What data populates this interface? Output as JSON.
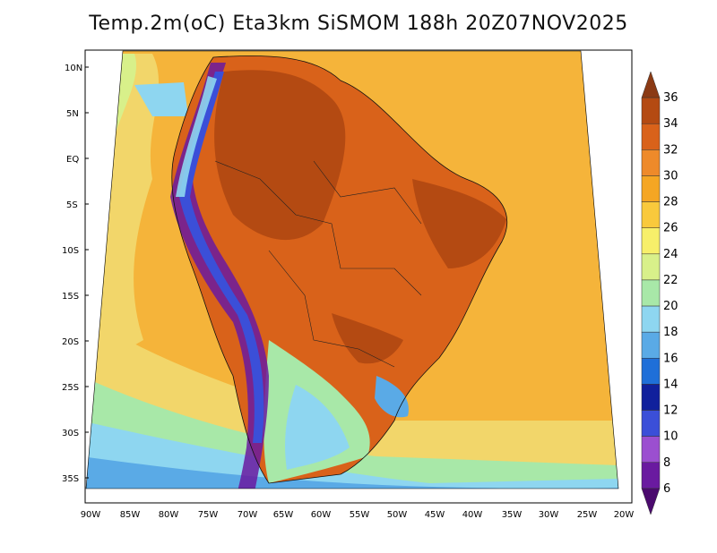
{
  "title": "Temp.2m(oC) Eta3km SiSMOM 188h 20Z07NOV2025",
  "map": {
    "lat_labels": [
      "10N",
      "5N",
      "EQ",
      "5S",
      "10S",
      "15S",
      "20S",
      "25S",
      "30S",
      "35S"
    ],
    "lon_labels": [
      "90W",
      "85W",
      "80W",
      "75W",
      "70W",
      "65W",
      "60W",
      "55W",
      "50W",
      "45W",
      "40W",
      "35W",
      "30W",
      "25W",
      "20W"
    ]
  },
  "colorbar": {
    "labels": [
      "36",
      "34",
      "32",
      "30",
      "28",
      "26",
      "24",
      "22",
      "20",
      "18",
      "16",
      "14",
      "12",
      "10",
      "8",
      "6"
    ],
    "colors": [
      "#8b3a14",
      "#b44a12",
      "#d9621a",
      "#ee8a2a",
      "#f5a623",
      "#f9c93c",
      "#f7ef6a",
      "#d8f08a",
      "#a8e8a8",
      "#8ed6f0",
      "#5aaae6",
      "#1f6fd8",
      "#10209c",
      "#3b4fd8",
      "#9b4fd0",
      "#6a1aa0",
      "#4b0a6e"
    ]
  }
}
